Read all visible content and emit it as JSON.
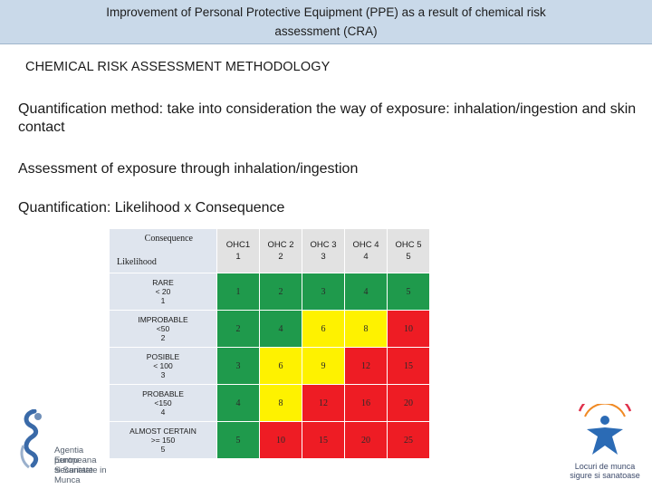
{
  "header": {
    "title_line1": "Improvement of Personal Protective  Equipment (PPE)  as a result of chemical risk",
    "title_line2": "assessment (CRA)"
  },
  "heading": "CHEMICAL RISK ASSESSMENT METHODOLOGY",
  "paragraphs": {
    "quantification_method": "Quantification method: take into consideration the way of exposure: inhalation/ingestion and skin contact",
    "assessment": "Assessment of exposure through inhalation/ingestion",
    "formula": "Quantification: Likelihood x Consequence"
  },
  "matrix": {
    "corner_consequence": "Consequence",
    "corner_likelihood": "Likelihood",
    "columns": [
      {
        "line1": "OHC1",
        "line2": "1"
      },
      {
        "line1": "OHC 2",
        "line2": "2"
      },
      {
        "line1": "OHC 3",
        "line2": "3"
      },
      {
        "line1": "OHC 4",
        "line2": "4"
      },
      {
        "line1": "OHC 5",
        "line2": "5"
      }
    ],
    "rows": [
      {
        "line1": "RARE",
        "line2": "< 20",
        "line3": "1",
        "cells": [
          "1",
          "2",
          "3",
          "4",
          "5"
        ]
      },
      {
        "line1": "IMPROBABLE",
        "line2": "<50",
        "line3": "2",
        "cells": [
          "2",
          "4",
          "6",
          "8",
          "10"
        ]
      },
      {
        "line1": "POSIBLE",
        "line2": "< 100",
        "line3": "3",
        "cells": [
          "3",
          "6",
          "9",
          "12",
          "15"
        ]
      },
      {
        "line1": "PROBABLE",
        "line2": "<150",
        "line3": "4",
        "cells": [
          "4",
          "8",
          "12",
          "16",
          "20"
        ]
      },
      {
        "line1": "ALMOST CERTAIN",
        "line2": ">= 150",
        "line3": "5",
        "cells": [
          "5",
          "10",
          "15",
          "20",
          "25"
        ]
      }
    ],
    "level_colors": {
      "green": "#1f9a4c",
      "yellow": "#fef200",
      "red": "#ee1c24"
    },
    "cell_levels": [
      [
        "green",
        "green",
        "green",
        "green",
        "green"
      ],
      [
        "green",
        "green",
        "yellow",
        "yellow",
        "red"
      ],
      [
        "green",
        "yellow",
        "yellow",
        "red",
        "red"
      ],
      [
        "green",
        "yellow",
        "red",
        "red",
        "red"
      ],
      [
        "green",
        "red",
        "red",
        "red",
        "red"
      ]
    ]
  },
  "logos": {
    "left": {
      "line1": "Agentia Europeana",
      "line2": "pentru Securitate",
      "line3": "si Sanatate in Munca"
    },
    "right": {
      "line1": "Locuri de munca",
      "line2": "sigure si sanatoase"
    }
  }
}
